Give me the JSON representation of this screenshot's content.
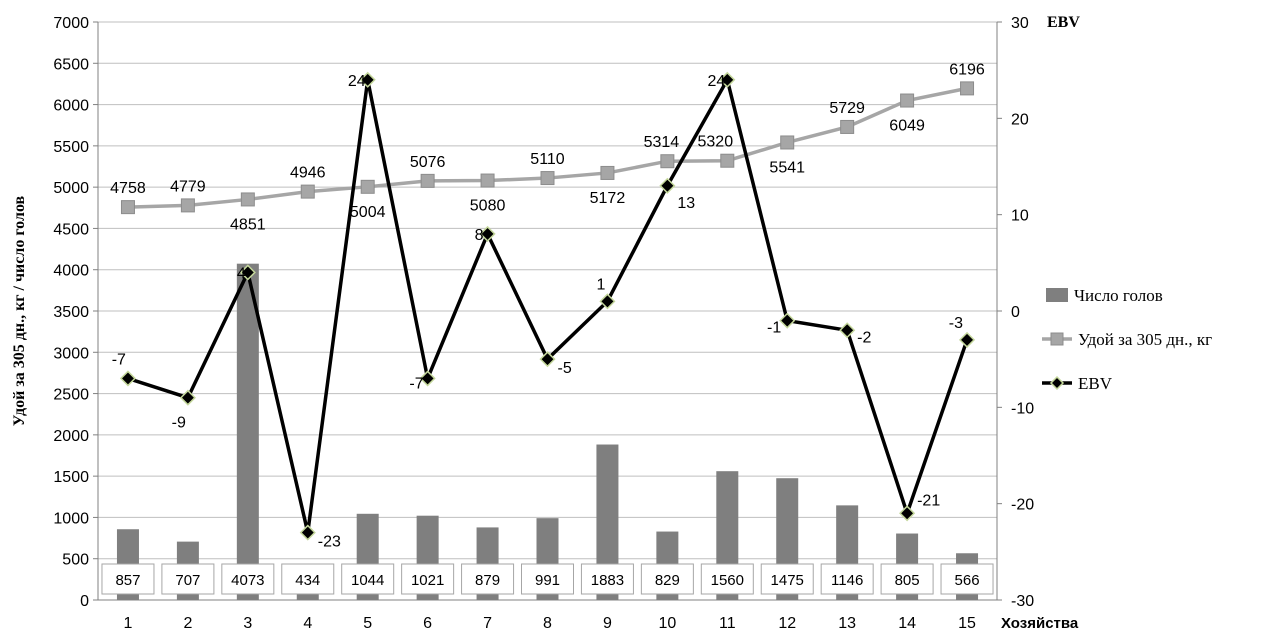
{
  "chart_data": {
    "type": "bar",
    "categories": [
      "1",
      "2",
      "3",
      "4",
      "5",
      "6",
      "7",
      "8",
      "9",
      "10",
      "11",
      "12",
      "13",
      "14",
      "15"
    ],
    "xlabel": "Хозяйства",
    "ylabel": "Удой за 305 дн., кг / число голов",
    "y2label": "EBV",
    "ylim": [
      0,
      7000
    ],
    "yticks": [
      0,
      500,
      1000,
      1500,
      2000,
      2500,
      3000,
      3500,
      4000,
      4500,
      5000,
      5500,
      6000,
      6500,
      7000
    ],
    "y2lim": [
      -30,
      30
    ],
    "y2ticks": [
      -30,
      -20,
      -10,
      0,
      10,
      20,
      30
    ],
    "grid": true,
    "legend_position": "right",
    "series": [
      {
        "name": "Число голов",
        "type": "bar",
        "axis": "left",
        "color": "#7f7f7f",
        "values": [
          857,
          707,
          4073,
          434,
          1044,
          1021,
          879,
          991,
          1883,
          829,
          1560,
          1475,
          1146,
          805,
          566
        ]
      },
      {
        "name": "Удой за 305 дн., кг",
        "type": "line",
        "axis": "left",
        "color": "#a6a6a6",
        "marker": "square",
        "values": [
          4758,
          4779,
          4851,
          4946,
          5004,
          5076,
          5080,
          5110,
          5172,
          5314,
          5320,
          5541,
          5729,
          6049,
          6196
        ]
      },
      {
        "name": "EBV",
        "type": "line",
        "axis": "right",
        "color": "#000000",
        "marker": "diamond",
        "marker_edge": "#c4d79b",
        "values": [
          -7,
          -9,
          4,
          -23,
          24,
          -7,
          8,
          -5,
          1,
          13,
          24,
          -1,
          -2,
          -21,
          -3
        ]
      }
    ]
  }
}
